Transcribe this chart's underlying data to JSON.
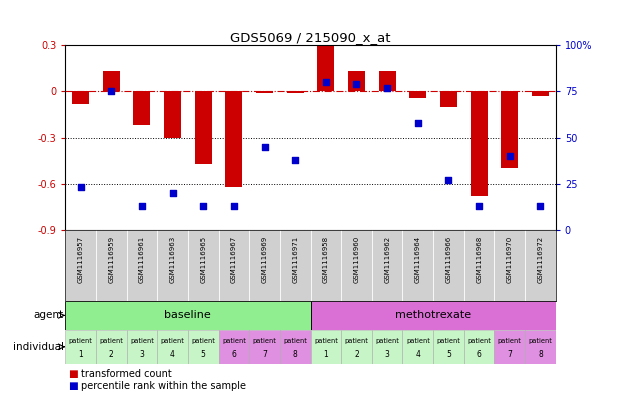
{
  "title": "GDS5069 / 215090_x_at",
  "samples": [
    "GSM1116957",
    "GSM1116959",
    "GSM1116961",
    "GSM1116963",
    "GSM1116965",
    "GSM1116967",
    "GSM1116969",
    "GSM1116971",
    "GSM1116958",
    "GSM1116960",
    "GSM1116962",
    "GSM1116964",
    "GSM1116966",
    "GSM1116968",
    "GSM1116970",
    "GSM1116972"
  ],
  "transformed_count": [
    -0.08,
    0.13,
    -0.22,
    -0.3,
    -0.47,
    -0.62,
    -0.01,
    -0.01,
    0.3,
    0.13,
    0.13,
    -0.04,
    -0.1,
    -0.68,
    -0.5,
    -0.03
  ],
  "percentile_rank": [
    23,
    75,
    13,
    20,
    13,
    13,
    45,
    38,
    80,
    79,
    77,
    58,
    27,
    13,
    40,
    13
  ],
  "ylim_left": [
    -0.9,
    0.3
  ],
  "yticks_left": [
    -0.9,
    -0.6,
    -0.3,
    0.0,
    0.3
  ],
  "ytick_labels_left": [
    "-0.9",
    "-0.6",
    "-0.3",
    "0",
    "0.3"
  ],
  "ylim_right": [
    0,
    100
  ],
  "yticks_right": [
    0,
    25,
    50,
    75,
    100
  ],
  "ytick_labels_right": [
    "0",
    "25",
    "50",
    "75",
    "100%"
  ],
  "hline_y": 0.0,
  "dotted_lines": [
    -0.3,
    -0.6
  ],
  "bar_color": "#cc0000",
  "scatter_color": "#0000cc",
  "bar_width": 0.55,
  "agent_groups": [
    {
      "label": "baseline",
      "start": 0,
      "end": 8,
      "color": "#90ee90"
    },
    {
      "label": "methotrexate",
      "start": 8,
      "end": 16,
      "color": "#da70d6"
    }
  ],
  "individual_labels_top": [
    "patient",
    "patient",
    "patient",
    "patient",
    "patient",
    "patient",
    "patient",
    "patient",
    "patient",
    "patient",
    "patient",
    "patient",
    "patient",
    "patient",
    "patient",
    "patient"
  ],
  "individual_numbers": [
    "1",
    "2",
    "3",
    "4",
    "5",
    "6",
    "7",
    "8",
    "1",
    "2",
    "3",
    "4",
    "5",
    "6",
    "7",
    "8"
  ],
  "indiv_colors": [
    "#c8f5c8",
    "#c8f5c8",
    "#c8f5c8",
    "#c8f5c8",
    "#c8f5c8",
    "#e090e0",
    "#e090e0",
    "#e090e0",
    "#c8f5c8",
    "#c8f5c8",
    "#c8f5c8",
    "#c8f5c8",
    "#c8f5c8",
    "#c8f5c8",
    "#e090e0",
    "#e090e0"
  ],
  "legend_items": [
    {
      "label": "transformed count",
      "color": "#cc0000"
    },
    {
      "label": "percentile rank within the sample",
      "color": "#0000cc"
    }
  ],
  "background_color": "#ffffff",
  "tick_label_color_left": "#cc0000",
  "tick_label_color_right": "#0000cc",
  "hline_color": "#cc0000",
  "sample_box_color": "#d0d0d0",
  "agent_label_color": "#000000",
  "indiv_border_color": "#aaaaaa"
}
